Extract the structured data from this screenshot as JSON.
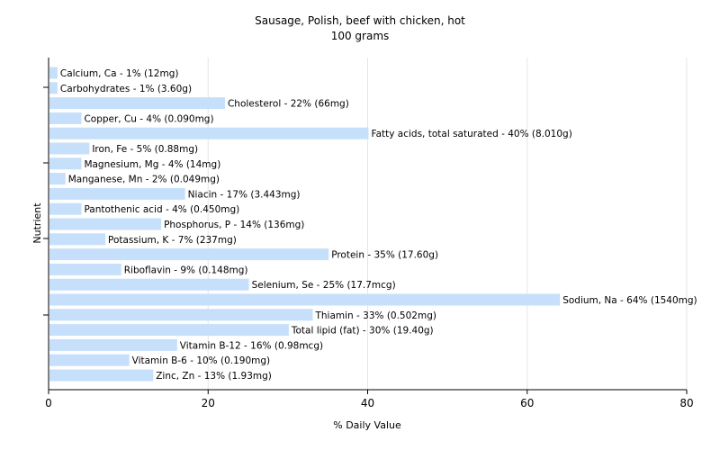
{
  "chart_data": {
    "type": "bar",
    "orientation": "horizontal",
    "title": "Sausage, Polish, beef with chicken, hot",
    "subtitle": "100 grams",
    "xlabel": "% Daily Value",
    "ylabel": "Nutrient",
    "xlim": [
      0,
      80
    ],
    "xticks": [
      0,
      20,
      40,
      60,
      80
    ],
    "grid": true,
    "bar_color": "#c6dffb",
    "categories": [
      "Calcium, Ca",
      "Carbohydrates",
      "Cholesterol",
      "Copper, Cu",
      "Fatty acids, total saturated",
      "Iron, Fe",
      "Magnesium, Mg",
      "Manganese, Mn",
      "Niacin",
      "Pantothenic acid",
      "Phosphorus, P",
      "Potassium, K",
      "Protein",
      "Riboflavin",
      "Selenium, Se",
      "Sodium, Na",
      "Thiamin",
      "Total lipid (fat)",
      "Vitamin B-12",
      "Vitamin B-6",
      "Zinc, Zn"
    ],
    "values": [
      1,
      1,
      22,
      4,
      40,
      5,
      4,
      2,
      17,
      4,
      14,
      7,
      35,
      9,
      25,
      64,
      33,
      30,
      16,
      10,
      13
    ],
    "labels": [
      "Calcium, Ca - 1% (12mg)",
      "Carbohydrates - 1% (3.60g)",
      "Cholesterol - 22% (66mg)",
      "Copper, Cu - 4% (0.090mg)",
      "Fatty acids, total saturated - 40% (8.010g)",
      "Iron, Fe - 5% (0.88mg)",
      "Magnesium, Mg - 4% (14mg)",
      "Manganese, Mn - 2% (0.049mg)",
      "Niacin - 17% (3.443mg)",
      "Pantothenic acid - 4% (0.450mg)",
      "Phosphorus, P - 14% (136mg)",
      "Potassium, K - 7% (237mg)",
      "Protein - 35% (17.60g)",
      "Riboflavin - 9% (0.148mg)",
      "Selenium, Se - 25% (17.7mcg)",
      "Sodium, Na - 64% (1540mg)",
      "Thiamin - 33% (0.502mg)",
      "Total lipid (fat) - 30% (19.40g)",
      "Vitamin B-12 - 16% (0.98mcg)",
      "Vitamin B-6 - 10% (0.190mg)",
      "Zinc, Zn - 13% (1.93mg)"
    ]
  }
}
